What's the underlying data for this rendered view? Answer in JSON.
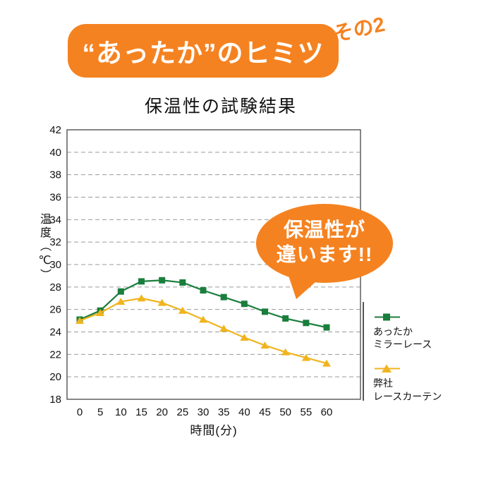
{
  "banner": {
    "title": "“あったか”のヒミツ",
    "badge": "その2",
    "bg_color": "#f58220",
    "badge_color": "#f58220",
    "text_color": "#ffffff"
  },
  "page_title": "保温性の試験結果",
  "callout": {
    "line1": "保温性が",
    "line2": "違います!!",
    "bg_color": "#f58220",
    "text_color": "#ffffff"
  },
  "chart_data": {
    "type": "line",
    "title": "保温性の試験結果",
    "xlabel": "時間(分)",
    "ylabel": "温度（℃）",
    "x": [
      0,
      5,
      10,
      15,
      20,
      25,
      30,
      35,
      40,
      45,
      50,
      55,
      60
    ],
    "ylim": [
      18,
      42
    ],
    "ytick_step": 2,
    "grid": "horizontal-dashed",
    "legend_position": "right",
    "series": [
      {
        "name": "あったかミラーレース",
        "legend_lines": [
          "あったか",
          "ミラーレース"
        ],
        "color": "#1a7e3c",
        "marker": "square",
        "values": [
          25.1,
          25.9,
          27.6,
          28.5,
          28.6,
          28.4,
          27.7,
          27.1,
          26.5,
          25.8,
          25.2,
          24.8,
          24.4
        ]
      },
      {
        "name": "弊社レースカーテン",
        "legend_lines": [
          "弊社",
          "レースカーテン"
        ],
        "color": "#f0b41e",
        "marker": "triangle",
        "values": [
          25.0,
          25.7,
          26.7,
          27.0,
          26.6,
          25.9,
          25.1,
          24.3,
          23.5,
          22.8,
          22.2,
          21.7,
          21.2
        ]
      }
    ]
  }
}
